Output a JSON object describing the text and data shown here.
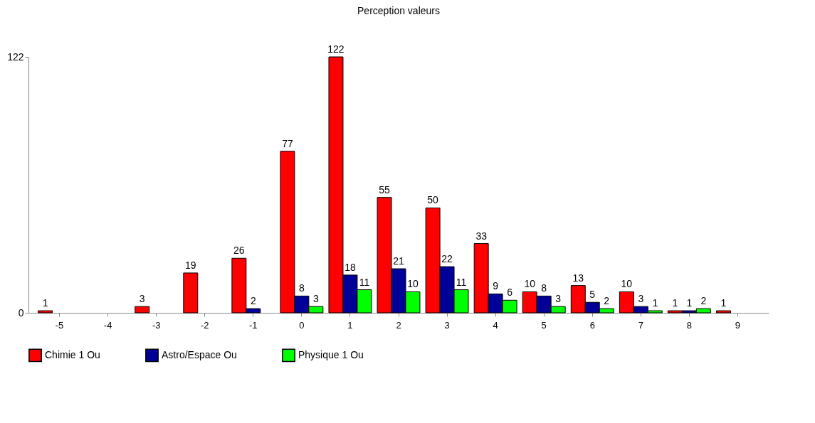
{
  "chart_data": {
    "type": "bar",
    "title": "Perception valeurs",
    "categories": [
      "-5",
      "-4",
      "-3",
      "-2",
      "-1",
      "0",
      "1",
      "2",
      "3",
      "4",
      "5",
      "6",
      "7",
      "8",
      "9"
    ],
    "series": [
      {
        "name": "Chimie 1 Ou",
        "color": "#ff0000",
        "values": [
          1,
          null,
          3,
          19,
          26,
          77,
          122,
          55,
          50,
          33,
          10,
          13,
          10,
          1,
          1
        ]
      },
      {
        "name": "Astro/Espace Ou",
        "color": "#000099",
        "values": [
          null,
          null,
          null,
          null,
          2,
          8,
          18,
          21,
          22,
          9,
          8,
          5,
          3,
          1,
          null
        ]
      },
      {
        "name": "Physique 1 Ou",
        "color": "#00ff00",
        "values": [
          null,
          null,
          null,
          null,
          null,
          3,
          11,
          10,
          11,
          6,
          3,
          2,
          1,
          2,
          null
        ]
      }
    ],
    "ylim": [
      0,
      122
    ],
    "yticks": [
      0,
      122
    ],
    "grid": false,
    "legend": "bottom left",
    "data_labels": true
  }
}
